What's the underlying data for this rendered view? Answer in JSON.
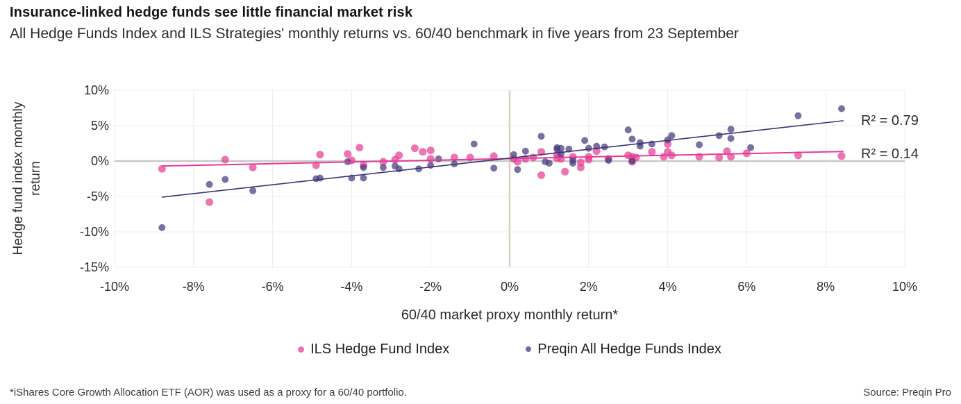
{
  "header": {
    "title": "Insurance-linked hedge funds see little financial market risk",
    "subtitle": "All Hedge Funds Index and ILS Strategies' monthly returns vs. 60/40 benchmark in five years from 23 September"
  },
  "chart_data": {
    "type": "scatter",
    "title": "Insurance-linked hedge funds see little financial market risk",
    "xlabel": "60/40 market proxy monthly return*",
    "ylabel": "Hedge fund index monthly return",
    "xlim": [
      -10,
      10
    ],
    "ylim": [
      -15,
      10
    ],
    "x_ticks": [
      "-10%",
      "-8%",
      "-6%",
      "-4%",
      "-2%",
      "0%",
      "2%",
      "4%",
      "6%",
      "8%",
      "10%"
    ],
    "y_ticks": [
      "10%",
      "5%",
      "0%",
      "-5%",
      "-10%",
      "-15%"
    ],
    "grid": true,
    "legend_position": "bottom",
    "zero_vline_color": "#d9d0c3",
    "zero_hline_color": "#c7c7c7",
    "gridline_color": "#ececec",
    "series": [
      {
        "name": "ILS Hedge Fund Index",
        "dot_color": "#E83D93",
        "line_color": "#E5399B",
        "r2": "R² = 0.14",
        "trendline": {
          "x1": -8.8,
          "y1": -0.7,
          "x2": 8.45,
          "y2": 1.35
        },
        "points": [
          [
            -8.8,
            -1.1
          ],
          [
            -7.6,
            -5.8
          ],
          [
            -7.2,
            0.2
          ],
          [
            -6.5,
            -0.9
          ],
          [
            -4.9,
            -0.6
          ],
          [
            -4.8,
            0.9
          ],
          [
            -4.1,
            1.0
          ],
          [
            -4.0,
            0.1
          ],
          [
            -3.8,
            1.9
          ],
          [
            -3.7,
            -0.6
          ],
          [
            -3.2,
            -0.1
          ],
          [
            -2.9,
            0.2
          ],
          [
            -2.8,
            0.8
          ],
          [
            -2.4,
            1.8
          ],
          [
            -2.2,
            1.3
          ],
          [
            -2.0,
            1.5
          ],
          [
            -2.0,
            0.3
          ],
          [
            -1.4,
            0.5
          ],
          [
            -1.0,
            0.5
          ],
          [
            -0.4,
            0.7
          ],
          [
            0.1,
            0.3
          ],
          [
            0.2,
            -0.1
          ],
          [
            0.4,
            0.3
          ],
          [
            0.6,
            0.5
          ],
          [
            0.8,
            1.3
          ],
          [
            0.8,
            -2.0
          ],
          [
            1.2,
            0.9
          ],
          [
            1.2,
            0.4
          ],
          [
            1.3,
            0.3
          ],
          [
            1.4,
            -1.5
          ],
          [
            1.6,
            0.6
          ],
          [
            1.8,
            -0.2
          ],
          [
            1.8,
            -0.9
          ],
          [
            2.0,
            0.6
          ],
          [
            2.0,
            0.2
          ],
          [
            2.2,
            1.4
          ],
          [
            2.5,
            0.3
          ],
          [
            3.0,
            0.8
          ],
          [
            3.1,
            0.6
          ],
          [
            3.1,
            -0.1
          ],
          [
            3.2,
            0.5
          ],
          [
            3.6,
            1.3
          ],
          [
            3.9,
            0.6
          ],
          [
            4.0,
            2.4
          ],
          [
            4.0,
            1.3
          ],
          [
            4.1,
            0.8
          ],
          [
            4.8,
            0.6
          ],
          [
            5.3,
            0.5
          ],
          [
            5.5,
            1.4
          ],
          [
            5.6,
            0.6
          ],
          [
            6.0,
            1.1
          ],
          [
            7.3,
            0.8
          ],
          [
            8.4,
            0.7
          ]
        ]
      },
      {
        "name": "Preqin All Hedge Funds Index",
        "dot_color": "#463A80",
        "line_color": "#3B3275",
        "r2": "R² = 0.79",
        "trendline": {
          "x1": -8.8,
          "y1": -5.1,
          "x2": 8.45,
          "y2": 5.7
        },
        "points": [
          [
            -8.8,
            -9.4
          ],
          [
            -7.6,
            -3.3
          ],
          [
            -7.2,
            -2.6
          ],
          [
            -6.5,
            -4.2
          ],
          [
            -4.9,
            -2.5
          ],
          [
            -4.8,
            -2.4
          ],
          [
            -4.1,
            -0.1
          ],
          [
            -4.0,
            -2.4
          ],
          [
            -3.7,
            -0.9
          ],
          [
            -3.7,
            -2.4
          ],
          [
            -3.2,
            -0.9
          ],
          [
            -2.9,
            -0.7
          ],
          [
            -2.8,
            -1.1
          ],
          [
            -2.3,
            -1.1
          ],
          [
            -2.0,
            -0.6
          ],
          [
            -1.8,
            0.3
          ],
          [
            -1.4,
            -0.4
          ],
          [
            -0.9,
            2.4
          ],
          [
            -0.4,
            -1.0
          ],
          [
            0.1,
            0.9
          ],
          [
            0.2,
            -1.2
          ],
          [
            0.4,
            1.4
          ],
          [
            0.8,
            3.5
          ],
          [
            0.9,
            -0.1
          ],
          [
            1.0,
            -0.3
          ],
          [
            1.2,
            1.7
          ],
          [
            1.2,
            1.9
          ],
          [
            1.3,
            1.8
          ],
          [
            1.3,
            1.0
          ],
          [
            1.5,
            1.7
          ],
          [
            1.6,
            0.1
          ],
          [
            1.6,
            -0.3
          ],
          [
            1.9,
            2.9
          ],
          [
            2.0,
            1.8
          ],
          [
            2.2,
            2.1
          ],
          [
            2.4,
            2.0
          ],
          [
            2.5,
            0.1
          ],
          [
            3.0,
            4.4
          ],
          [
            3.1,
            3.1
          ],
          [
            3.1,
            0.0
          ],
          [
            3.3,
            2.6
          ],
          [
            3.3,
            2.1
          ],
          [
            3.6,
            2.4
          ],
          [
            4.0,
            3.0
          ],
          [
            4.1,
            3.6
          ],
          [
            4.8,
            2.3
          ],
          [
            5.3,
            3.6
          ],
          [
            5.6,
            4.5
          ],
          [
            5.6,
            3.2
          ],
          [
            6.1,
            1.9
          ],
          [
            7.3,
            6.4
          ],
          [
            8.4,
            7.4
          ]
        ]
      }
    ]
  },
  "footer": {
    "note": "*iShares Core Growth Allocation ETF (AOR) was used as a proxy for a 60/40 portfolio.",
    "source": "Source: Preqin Pro"
  }
}
